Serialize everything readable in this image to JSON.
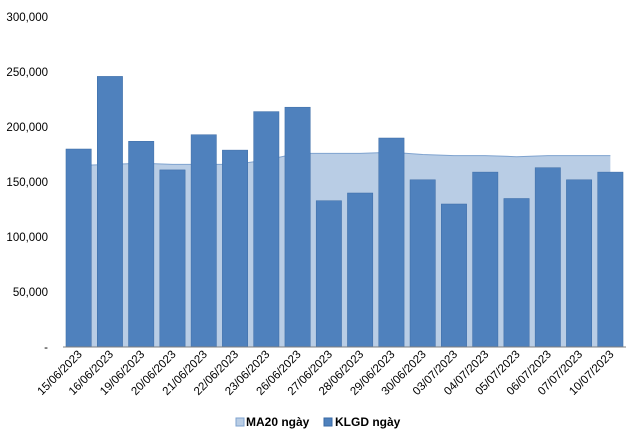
{
  "colors": {
    "bar": "#4F81BD",
    "bar_stroke": "#3A6AA5",
    "area_fill": "#B9CDE5",
    "area_stroke": "#7FA3CF",
    "axis": "#808080"
  },
  "chart_data": {
    "type": "bar",
    "title": "",
    "xlabel": "",
    "ylabel": "",
    "ylim": [
      0,
      300000
    ],
    "y_tick_labels": [
      "-",
      "50,000",
      "100,000",
      "150,000",
      "200,000",
      "250,000",
      "300,000"
    ],
    "y_tick_values": [
      0,
      50000,
      100000,
      150000,
      200000,
      250000,
      300000
    ],
    "grid": false,
    "legend_position": "bottom",
    "categories": [
      "15/06/2023",
      "16/06/2023",
      "19/06/2023",
      "20/06/2023",
      "21/06/2023",
      "22/06/2023",
      "23/06/2023",
      "26/06/2023",
      "27/06/2023",
      "28/06/2023",
      "29/06/2023",
      "30/06/2023",
      "03/07/2023",
      "04/07/2023",
      "05/07/2023",
      "06/07/2023",
      "07/07/2023",
      "10/07/2023"
    ],
    "series": [
      {
        "name": "MA20 ngày",
        "type": "area",
        "values": [
          165000,
          166000,
          167000,
          166000,
          166000,
          166000,
          170000,
          176000,
          176000,
          176000,
          177000,
          175000,
          174000,
          174000,
          173000,
          174000,
          174000,
          174000
        ]
      },
      {
        "name": "KLGD ngày",
        "type": "bar",
        "values": [
          180000,
          246000,
          187000,
          161000,
          193000,
          179000,
          214000,
          218000,
          133000,
          140000,
          190000,
          152000,
          130000,
          159000,
          135000,
          163000,
          152000,
          159000
        ]
      }
    ]
  }
}
